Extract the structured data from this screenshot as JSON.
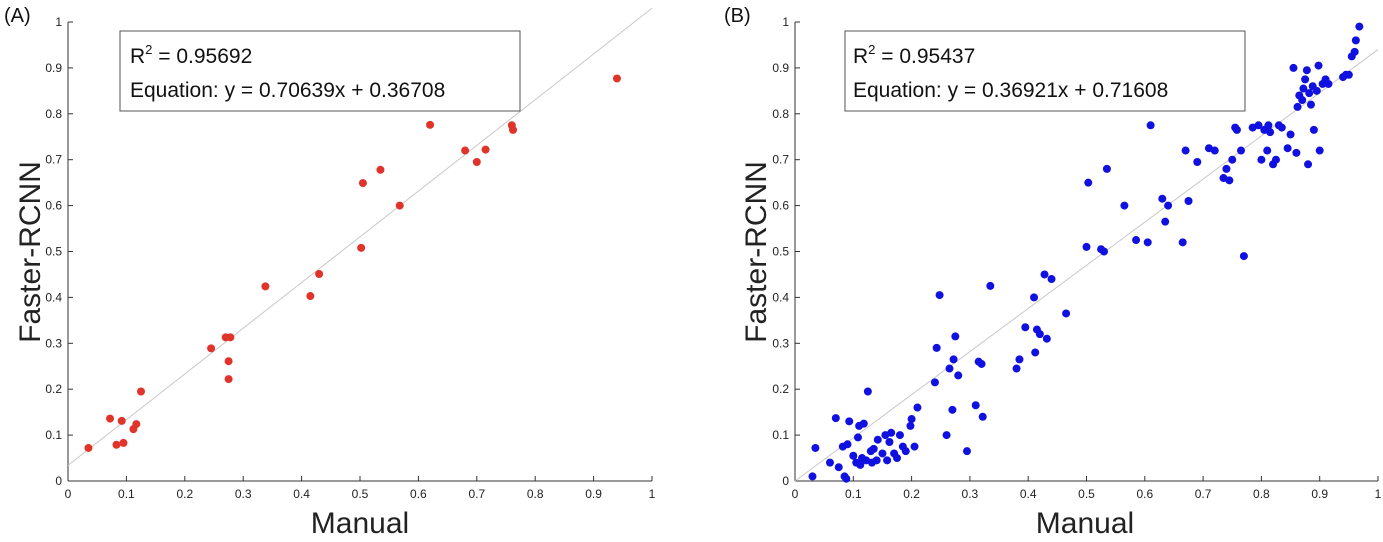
{
  "chart_data": [
    {
      "type": "scatter",
      "panel_label": "(A)",
      "xlabel": "Manual",
      "ylabel": "Faster-RCNN",
      "xlim": [
        0,
        1
      ],
      "ylim": [
        0,
        1
      ],
      "xticks": [
        0,
        0.1,
        0.2,
        0.3,
        0.4,
        0.5,
        0.6,
        0.7,
        0.8,
        0.9,
        1
      ],
      "yticks": [
        0,
        0.1,
        0.2,
        0.3,
        0.4,
        0.5,
        0.6,
        0.7,
        0.8,
        0.9,
        1
      ],
      "xtick_labels": [
        "0",
        "0.1",
        "0.2",
        "0.3",
        "0.4",
        "0.5",
        "0.6",
        "0.7",
        "0.8",
        "0.9",
        "1"
      ],
      "ytick_labels": [
        "0",
        "0.1",
        "0.2",
        "0.3",
        "0.4",
        "0.5",
        "0.6",
        "0.7",
        "0.8",
        "0.9",
        "1"
      ],
      "grid": false,
      "annotation": {
        "r2_prefix": "R",
        "r2_sup": "2",
        "r2_value": " = 0.95692",
        "equation": "Equation: y = 0.70639x + 0.36708"
      },
      "reference_line": {
        "from": [
          0,
          0.034
        ],
        "to": [
          1,
          1.03
        ],
        "color": "#c8c8c8"
      },
      "series": [
        {
          "color": "#e0332a",
          "points": [
            [
              0.035,
              0.072
            ],
            [
              0.072,
              0.136
            ],
            [
              0.083,
              0.079
            ],
            [
              0.092,
              0.131
            ],
            [
              0.095,
              0.083
            ],
            [
              0.112,
              0.113
            ],
            [
              0.117,
              0.124
            ],
            [
              0.125,
              0.195
            ],
            [
              0.245,
              0.289
            ],
            [
              0.27,
              0.313
            ],
            [
              0.278,
              0.313
            ],
            [
              0.275,
              0.261
            ],
            [
              0.275,
              0.222
            ],
            [
              0.338,
              0.424
            ],
            [
              0.415,
              0.403
            ],
            [
              0.43,
              0.451
            ],
            [
              0.502,
              0.508
            ],
            [
              0.505,
              0.649
            ],
            [
              0.535,
              0.678
            ],
            [
              0.568,
              0.6
            ],
            [
              0.62,
              0.776
            ],
            [
              0.68,
              0.72
            ],
            [
              0.7,
              0.695
            ],
            [
              0.715,
              0.722
            ],
            [
              0.76,
              0.775
            ],
            [
              0.762,
              0.765
            ],
            [
              0.94,
              0.877
            ]
          ]
        }
      ]
    },
    {
      "type": "scatter",
      "panel_label": "(B)",
      "xlabel": "Manual",
      "ylabel": "Faster-RCNN",
      "xlim": [
        0,
        1
      ],
      "ylim": [
        0,
        1
      ],
      "xticks": [
        0,
        0.1,
        0.2,
        0.3,
        0.4,
        0.5,
        0.6,
        0.7,
        0.8,
        0.9,
        1
      ],
      "yticks": [
        0,
        0.1,
        0.2,
        0.3,
        0.4,
        0.5,
        0.6,
        0.7,
        0.8,
        0.9,
        1
      ],
      "xtick_labels": [
        "0",
        "0.1",
        "0.2",
        "0.3",
        "0.4",
        "0.5",
        "0.6",
        "0.7",
        "0.8",
        "0.9",
        "1"
      ],
      "ytick_labels": [
        "0",
        "0.1",
        "0.2",
        "0.3",
        "0.4",
        "0.5",
        "0.6",
        "0.7",
        "0.8",
        "0.9",
        "1"
      ],
      "grid": false,
      "annotation": {
        "r2_prefix": "R",
        "r2_sup": "2",
        "r2_value": " = 0.95437",
        "equation": "Equation: y = 0.36921x + 0.71608"
      },
      "reference_line": {
        "from": [
          0,
          0.0
        ],
        "to": [
          1,
          0.94
        ],
        "color": "#c8c8c8"
      },
      "series": [
        {
          "color": "#1010e0",
          "points": [
            [
              0.03,
              0.01
            ],
            [
              0.035,
              0.072
            ],
            [
              0.06,
              0.04
            ],
            [
              0.07,
              0.137
            ],
            [
              0.075,
              0.03
            ],
            [
              0.082,
              0.075
            ],
            [
              0.085,
              0.01
            ],
            [
              0.088,
              0.005
            ],
            [
              0.09,
              0.08
            ],
            [
              0.093,
              0.13
            ],
            [
              0.1,
              0.055
            ],
            [
              0.105,
              0.04
            ],
            [
              0.108,
              0.095
            ],
            [
              0.11,
              0.12
            ],
            [
              0.112,
              0.035
            ],
            [
              0.115,
              0.05
            ],
            [
              0.118,
              0.125
            ],
            [
              0.122,
              0.045
            ],
            [
              0.125,
              0.195
            ],
            [
              0.13,
              0.065
            ],
            [
              0.132,
              0.04
            ],
            [
              0.135,
              0.07
            ],
            [
              0.14,
              0.045
            ],
            [
              0.142,
              0.09
            ],
            [
              0.15,
              0.06
            ],
            [
              0.155,
              0.1
            ],
            [
              0.158,
              0.045
            ],
            [
              0.162,
              0.085
            ],
            [
              0.165,
              0.105
            ],
            [
              0.17,
              0.06
            ],
            [
              0.175,
              0.05
            ],
            [
              0.18,
              0.1
            ],
            [
              0.185,
              0.075
            ],
            [
              0.19,
              0.065
            ],
            [
              0.198,
              0.12
            ],
            [
              0.2,
              0.135
            ],
            [
              0.205,
              0.075
            ],
            [
              0.21,
              0.16
            ],
            [
              0.24,
              0.215
            ],
            [
              0.243,
              0.29
            ],
            [
              0.248,
              0.405
            ],
            [
              0.26,
              0.1
            ],
            [
              0.265,
              0.245
            ],
            [
              0.27,
              0.155
            ],
            [
              0.272,
              0.265
            ],
            [
              0.275,
              0.315
            ],
            [
              0.28,
              0.23
            ],
            [
              0.295,
              0.065
            ],
            [
              0.31,
              0.165
            ],
            [
              0.315,
              0.26
            ],
            [
              0.32,
              0.255
            ],
            [
              0.322,
              0.14
            ],
            [
              0.335,
              0.425
            ],
            [
              0.38,
              0.245
            ],
            [
              0.385,
              0.265
            ],
            [
              0.395,
              0.335
            ],
            [
              0.41,
              0.4
            ],
            [
              0.412,
              0.28
            ],
            [
              0.415,
              0.33
            ],
            [
              0.42,
              0.32
            ],
            [
              0.428,
              0.45
            ],
            [
              0.432,
              0.31
            ],
            [
              0.44,
              0.44
            ],
            [
              0.465,
              0.365
            ],
            [
              0.5,
              0.51
            ],
            [
              0.503,
              0.65
            ],
            [
              0.525,
              0.505
            ],
            [
              0.53,
              0.5
            ],
            [
              0.535,
              0.68
            ],
            [
              0.565,
              0.6
            ],
            [
              0.585,
              0.525
            ],
            [
              0.605,
              0.52
            ],
            [
              0.61,
              0.775
            ],
            [
              0.63,
              0.615
            ],
            [
              0.635,
              0.565
            ],
            [
              0.64,
              0.6
            ],
            [
              0.665,
              0.52
            ],
            [
              0.67,
              0.72
            ],
            [
              0.675,
              0.61
            ],
            [
              0.69,
              0.695
            ],
            [
              0.71,
              0.725
            ],
            [
              0.72,
              0.72
            ],
            [
              0.735,
              0.66
            ],
            [
              0.74,
              0.68
            ],
            [
              0.745,
              0.655
            ],
            [
              0.75,
              0.7
            ],
            [
              0.755,
              0.77
            ],
            [
              0.758,
              0.765
            ],
            [
              0.765,
              0.72
            ],
            [
              0.77,
              0.49
            ],
            [
              0.785,
              0.77
            ],
            [
              0.795,
              0.775
            ],
            [
              0.8,
              0.7
            ],
            [
              0.805,
              0.765
            ],
            [
              0.81,
              0.72
            ],
            [
              0.812,
              0.775
            ],
            [
              0.815,
              0.76
            ],
            [
              0.82,
              0.69
            ],
            [
              0.825,
              0.7
            ],
            [
              0.83,
              0.775
            ],
            [
              0.835,
              0.77
            ],
            [
              0.845,
              0.725
            ],
            [
              0.85,
              0.755
            ],
            [
              0.855,
              0.9
            ],
            [
              0.86,
              0.715
            ],
            [
              0.862,
              0.815
            ],
            [
              0.865,
              0.84
            ],
            [
              0.87,
              0.83
            ],
            [
              0.872,
              0.855
            ],
            [
              0.875,
              0.875
            ],
            [
              0.878,
              0.895
            ],
            [
              0.88,
              0.69
            ],
            [
              0.882,
              0.845
            ],
            [
              0.885,
              0.82
            ],
            [
              0.888,
              0.86
            ],
            [
              0.89,
              0.765
            ],
            [
              0.895,
              0.85
            ],
            [
              0.898,
              0.905
            ],
            [
              0.9,
              0.72
            ],
            [
              0.905,
              0.865
            ],
            [
              0.91,
              0.875
            ],
            [
              0.915,
              0.865
            ],
            [
              0.94,
              0.88
            ],
            [
              0.945,
              0.885
            ],
            [
              0.95,
              0.885
            ],
            [
              0.955,
              0.925
            ],
            [
              0.96,
              0.935
            ],
            [
              0.962,
              0.96
            ],
            [
              0.968,
              0.99
            ]
          ]
        }
      ]
    }
  ]
}
